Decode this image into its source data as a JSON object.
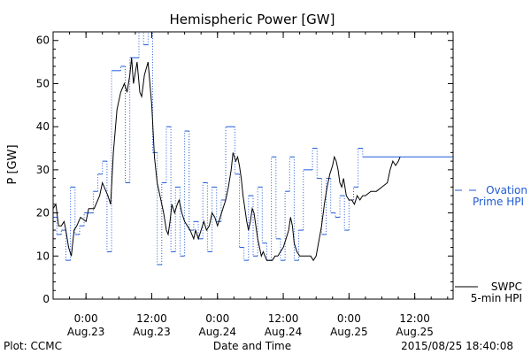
{
  "chart_data": {
    "type": "line",
    "title": "Hemispheric Power [GW]",
    "xlabel": "Date and Time",
    "ylabel": "P [GW]",
    "ylim": [
      0,
      62
    ],
    "yticks": [
      0,
      10,
      20,
      30,
      40,
      50,
      60
    ],
    "xlim": [
      "2015-08-22T18:00",
      "2015-08-25T19:00"
    ],
    "xticks": [
      {
        "t": "2015-08-23T00:00",
        "line1": "0:00",
        "line2": "Aug.23"
      },
      {
        "t": "2015-08-23T12:00",
        "line1": "12:00",
        "line2": "Aug.23"
      },
      {
        "t": "2015-08-24T00:00",
        "line1": "0:00",
        "line2": "Aug.24"
      },
      {
        "t": "2015-08-24T12:00",
        "line1": "12:00",
        "line2": "Aug.24"
      },
      {
        "t": "2015-08-25T00:00",
        "line1": "0:00",
        "line2": "Aug.25"
      },
      {
        "t": "2015-08-25T12:00",
        "line1": "12:00",
        "line2": "Aug.25"
      }
    ],
    "series": [
      {
        "name": "Ovation Prime HPI",
        "legend_lines": [
          "Ovation",
          "Prime HPI"
        ],
        "color": "#1f5bd6",
        "style": "dotted-step",
        "values": [
          [
            "2015-08-22T18:00",
            19
          ],
          [
            "2015-08-22T18:40",
            15
          ],
          [
            "2015-08-22T19:30",
            16
          ],
          [
            "2015-08-22T20:20",
            9
          ],
          [
            "2015-08-22T21:10",
            26
          ],
          [
            "2015-08-22T22:00",
            15
          ],
          [
            "2015-08-22T22:50",
            17
          ],
          [
            "2015-08-22T23:40",
            20
          ],
          [
            "2015-08-23T00:30",
            20
          ],
          [
            "2015-08-23T01:20",
            25
          ],
          [
            "2015-08-23T02:10",
            29
          ],
          [
            "2015-08-23T03:00",
            32
          ],
          [
            "2015-08-23T03:50",
            11
          ],
          [
            "2015-08-23T04:40",
            53
          ],
          [
            "2015-08-23T06:20",
            54
          ],
          [
            "2015-08-23T07:10",
            27
          ],
          [
            "2015-08-23T08:00",
            56
          ],
          [
            "2015-08-23T09:40",
            63
          ],
          [
            "2015-08-23T10:30",
            59
          ],
          [
            "2015-08-23T11:20",
            63
          ],
          [
            "2015-08-23T12:10",
            34
          ],
          [
            "2015-08-23T13:00",
            8
          ],
          [
            "2015-08-23T13:50",
            27
          ],
          [
            "2015-08-23T14:40",
            40
          ],
          [
            "2015-08-23T15:30",
            11
          ],
          [
            "2015-08-23T16:20",
            26
          ],
          [
            "2015-08-23T17:10",
            10
          ],
          [
            "2015-08-23T18:00",
            39
          ],
          [
            "2015-08-23T18:50",
            16
          ],
          [
            "2015-08-23T19:40",
            18
          ],
          [
            "2015-08-23T20:30",
            14
          ],
          [
            "2015-08-23T21:20",
            27
          ],
          [
            "2015-08-23T22:10",
            11
          ],
          [
            "2015-08-23T23:00",
            26
          ],
          [
            "2015-08-23T23:50",
            18
          ],
          [
            "2015-08-24T00:40",
            23
          ],
          [
            "2015-08-24T01:30",
            40
          ],
          [
            "2015-08-24T03:10",
            29
          ],
          [
            "2015-08-24T04:00",
            12
          ],
          [
            "2015-08-24T04:50",
            9
          ],
          [
            "2015-08-24T05:40",
            24
          ],
          [
            "2015-08-24T06:30",
            10
          ],
          [
            "2015-08-24T07:20",
            26
          ],
          [
            "2015-08-24T08:10",
            13
          ],
          [
            "2015-08-24T09:00",
            9
          ],
          [
            "2015-08-24T09:50",
            33
          ],
          [
            "2015-08-24T10:40",
            14
          ],
          [
            "2015-08-24T11:30",
            9
          ],
          [
            "2015-08-24T12:20",
            25
          ],
          [
            "2015-08-24T13:10",
            33
          ],
          [
            "2015-08-24T14:00",
            9
          ],
          [
            "2015-08-24T14:50",
            16
          ],
          [
            "2015-08-24T15:40",
            30
          ],
          [
            "2015-08-24T17:20",
            35
          ],
          [
            "2015-08-24T18:10",
            28
          ],
          [
            "2015-08-24T19:00",
            15
          ],
          [
            "2015-08-24T19:50",
            28
          ],
          [
            "2015-08-24T20:40",
            20
          ],
          [
            "2015-08-24T21:30",
            19
          ],
          [
            "2015-08-24T22:20",
            24
          ],
          [
            "2015-08-24T23:10",
            16
          ],
          [
            "2015-08-25T00:00",
            23
          ],
          [
            "2015-08-25T00:50",
            26
          ],
          [
            "2015-08-25T01:40",
            35
          ],
          [
            "2015-08-25T02:30",
            33
          ],
          [
            "2015-08-25T19:00",
            33
          ]
        ]
      },
      {
        "name": "SWPC 5-min HPI",
        "legend_lines": [
          "SWPC",
          "5-min HPI"
        ],
        "color": "#000000",
        "style": "solid",
        "values": [
          [
            "2015-08-22T18:00",
            21
          ],
          [
            "2015-08-22T18:30",
            22
          ],
          [
            "2015-08-22T19:00",
            17
          ],
          [
            "2015-08-22T19:30",
            17
          ],
          [
            "2015-08-22T20:00",
            18
          ],
          [
            "2015-08-22T20:20",
            16
          ],
          [
            "2015-08-22T20:50",
            12
          ],
          [
            "2015-08-22T21:20",
            10
          ],
          [
            "2015-08-22T21:50",
            16
          ],
          [
            "2015-08-22T22:20",
            17
          ],
          [
            "2015-08-22T23:00",
            19
          ],
          [
            "2015-08-23T00:00",
            18
          ],
          [
            "2015-08-23T00:30",
            21
          ],
          [
            "2015-08-23T01:30",
            21
          ],
          [
            "2015-08-23T02:30",
            24
          ],
          [
            "2015-08-23T03:00",
            27
          ],
          [
            "2015-08-23T04:00",
            24
          ],
          [
            "2015-08-23T04:30",
            22
          ],
          [
            "2015-08-23T05:00",
            34
          ],
          [
            "2015-08-23T05:40",
            44
          ],
          [
            "2015-08-23T06:20",
            48
          ],
          [
            "2015-08-23T07:00",
            50
          ],
          [
            "2015-08-23T07:30",
            48
          ],
          [
            "2015-08-23T08:00",
            52
          ],
          [
            "2015-08-23T08:20",
            56
          ],
          [
            "2015-08-23T08:40",
            50
          ],
          [
            "2015-08-23T09:20",
            55
          ],
          [
            "2015-08-23T09:50",
            48
          ],
          [
            "2015-08-23T10:10",
            47
          ],
          [
            "2015-08-23T10:40",
            52
          ],
          [
            "2015-08-23T11:20",
            55
          ],
          [
            "2015-08-23T12:00",
            45
          ],
          [
            "2015-08-23T12:30",
            33
          ],
          [
            "2015-08-23T13:00",
            27
          ],
          [
            "2015-08-23T13:40",
            23
          ],
          [
            "2015-08-23T14:10",
            20
          ],
          [
            "2015-08-23T14:40",
            16
          ],
          [
            "2015-08-23T15:00",
            15
          ],
          [
            "2015-08-23T15:20",
            18
          ],
          [
            "2015-08-23T15:40",
            22
          ],
          [
            "2015-08-23T16:10",
            20
          ],
          [
            "2015-08-23T16:40",
            22
          ],
          [
            "2015-08-23T17:00",
            23
          ],
          [
            "2015-08-23T17:30",
            20
          ],
          [
            "2015-08-23T18:00",
            18
          ],
          [
            "2015-08-23T18:30",
            17
          ],
          [
            "2015-08-23T19:00",
            16
          ],
          [
            "2015-08-23T19:40",
            14
          ],
          [
            "2015-08-23T20:00",
            16
          ],
          [
            "2015-08-23T20:30",
            14
          ],
          [
            "2015-08-23T21:00",
            16
          ],
          [
            "2015-08-23T21:30",
            18
          ],
          [
            "2015-08-23T22:00",
            16
          ],
          [
            "2015-08-23T22:30",
            17
          ],
          [
            "2015-08-23T23:00",
            20
          ],
          [
            "2015-08-23T23:30",
            19
          ],
          [
            "2015-08-24T00:00",
            17
          ],
          [
            "2015-08-24T00:30",
            19
          ],
          [
            "2015-08-24T01:00",
            21
          ],
          [
            "2015-08-24T01:30",
            23
          ],
          [
            "2015-08-24T02:00",
            26
          ],
          [
            "2015-08-24T02:30",
            30
          ],
          [
            "2015-08-24T02:50",
            34
          ],
          [
            "2015-08-24T03:20",
            32
          ],
          [
            "2015-08-24T03:40",
            33
          ],
          [
            "2015-08-24T04:00",
            31
          ],
          [
            "2015-08-24T04:20",
            28
          ],
          [
            "2015-08-24T04:40",
            24
          ],
          [
            "2015-08-24T05:00",
            21
          ],
          [
            "2015-08-24T05:20",
            18
          ],
          [
            "2015-08-24T05:40",
            16
          ],
          [
            "2015-08-24T06:00",
            18
          ],
          [
            "2015-08-24T06:20",
            21
          ],
          [
            "2015-08-24T06:40",
            20
          ],
          [
            "2015-08-24T07:00",
            17
          ],
          [
            "2015-08-24T07:20",
            14
          ],
          [
            "2015-08-24T07:40",
            12
          ],
          [
            "2015-08-24T08:00",
            10
          ],
          [
            "2015-08-24T08:20",
            11
          ],
          [
            "2015-08-24T08:40",
            10
          ],
          [
            "2015-08-24T09:00",
            9
          ],
          [
            "2015-08-24T10:00",
            9
          ],
          [
            "2015-08-24T10:30",
            10
          ],
          [
            "2015-08-24T11:00",
            10
          ],
          [
            "2015-08-24T11:30",
            11
          ],
          [
            "2015-08-24T12:00",
            12
          ],
          [
            "2015-08-24T12:30",
            14
          ],
          [
            "2015-08-24T13:00",
            16
          ],
          [
            "2015-08-24T13:20",
            19
          ],
          [
            "2015-08-24T13:40",
            17
          ],
          [
            "2015-08-24T14:00",
            13
          ],
          [
            "2015-08-24T14:30",
            11
          ],
          [
            "2015-08-24T15:00",
            10
          ],
          [
            "2015-08-24T17:00",
            10
          ],
          [
            "2015-08-24T17:30",
            9
          ],
          [
            "2015-08-24T18:00",
            10
          ],
          [
            "2015-08-24T19:00",
            17
          ],
          [
            "2015-08-24T19:30",
            22
          ],
          [
            "2015-08-24T20:00",
            26
          ],
          [
            "2015-08-24T20:30",
            29
          ],
          [
            "2015-08-24T21:00",
            31
          ],
          [
            "2015-08-24T21:20",
            33
          ],
          [
            "2015-08-24T21:40",
            32
          ],
          [
            "2015-08-24T22:00",
            30
          ],
          [
            "2015-08-24T22:20",
            27
          ],
          [
            "2015-08-24T22:40",
            26
          ],
          [
            "2015-08-24T23:00",
            28
          ],
          [
            "2015-08-24T23:30",
            24
          ],
          [
            "2015-08-25T00:00",
            23
          ],
          [
            "2015-08-25T00:30",
            23
          ],
          [
            "2015-08-25T01:00",
            22
          ],
          [
            "2015-08-25T01:30",
            24
          ],
          [
            "2015-08-25T02:00",
            23
          ],
          [
            "2015-08-25T02:30",
            24
          ],
          [
            "2015-08-25T03:00",
            24
          ],
          [
            "2015-08-25T04:00",
            25
          ],
          [
            "2015-08-25T05:00",
            25
          ],
          [
            "2015-08-25T06:00",
            26
          ],
          [
            "2015-08-25T07:00",
            27
          ],
          [
            "2015-08-25T07:30",
            30
          ],
          [
            "2015-08-25T08:00",
            32
          ],
          [
            "2015-08-25T08:30",
            31
          ],
          [
            "2015-08-25T09:00",
            32
          ],
          [
            "2015-08-25T09:20",
            33
          ]
        ]
      }
    ],
    "legend_placement": "right"
  },
  "footer": {
    "credit": "Plot: CCMC",
    "timestamp": "2015/08/25 18:40:08"
  }
}
